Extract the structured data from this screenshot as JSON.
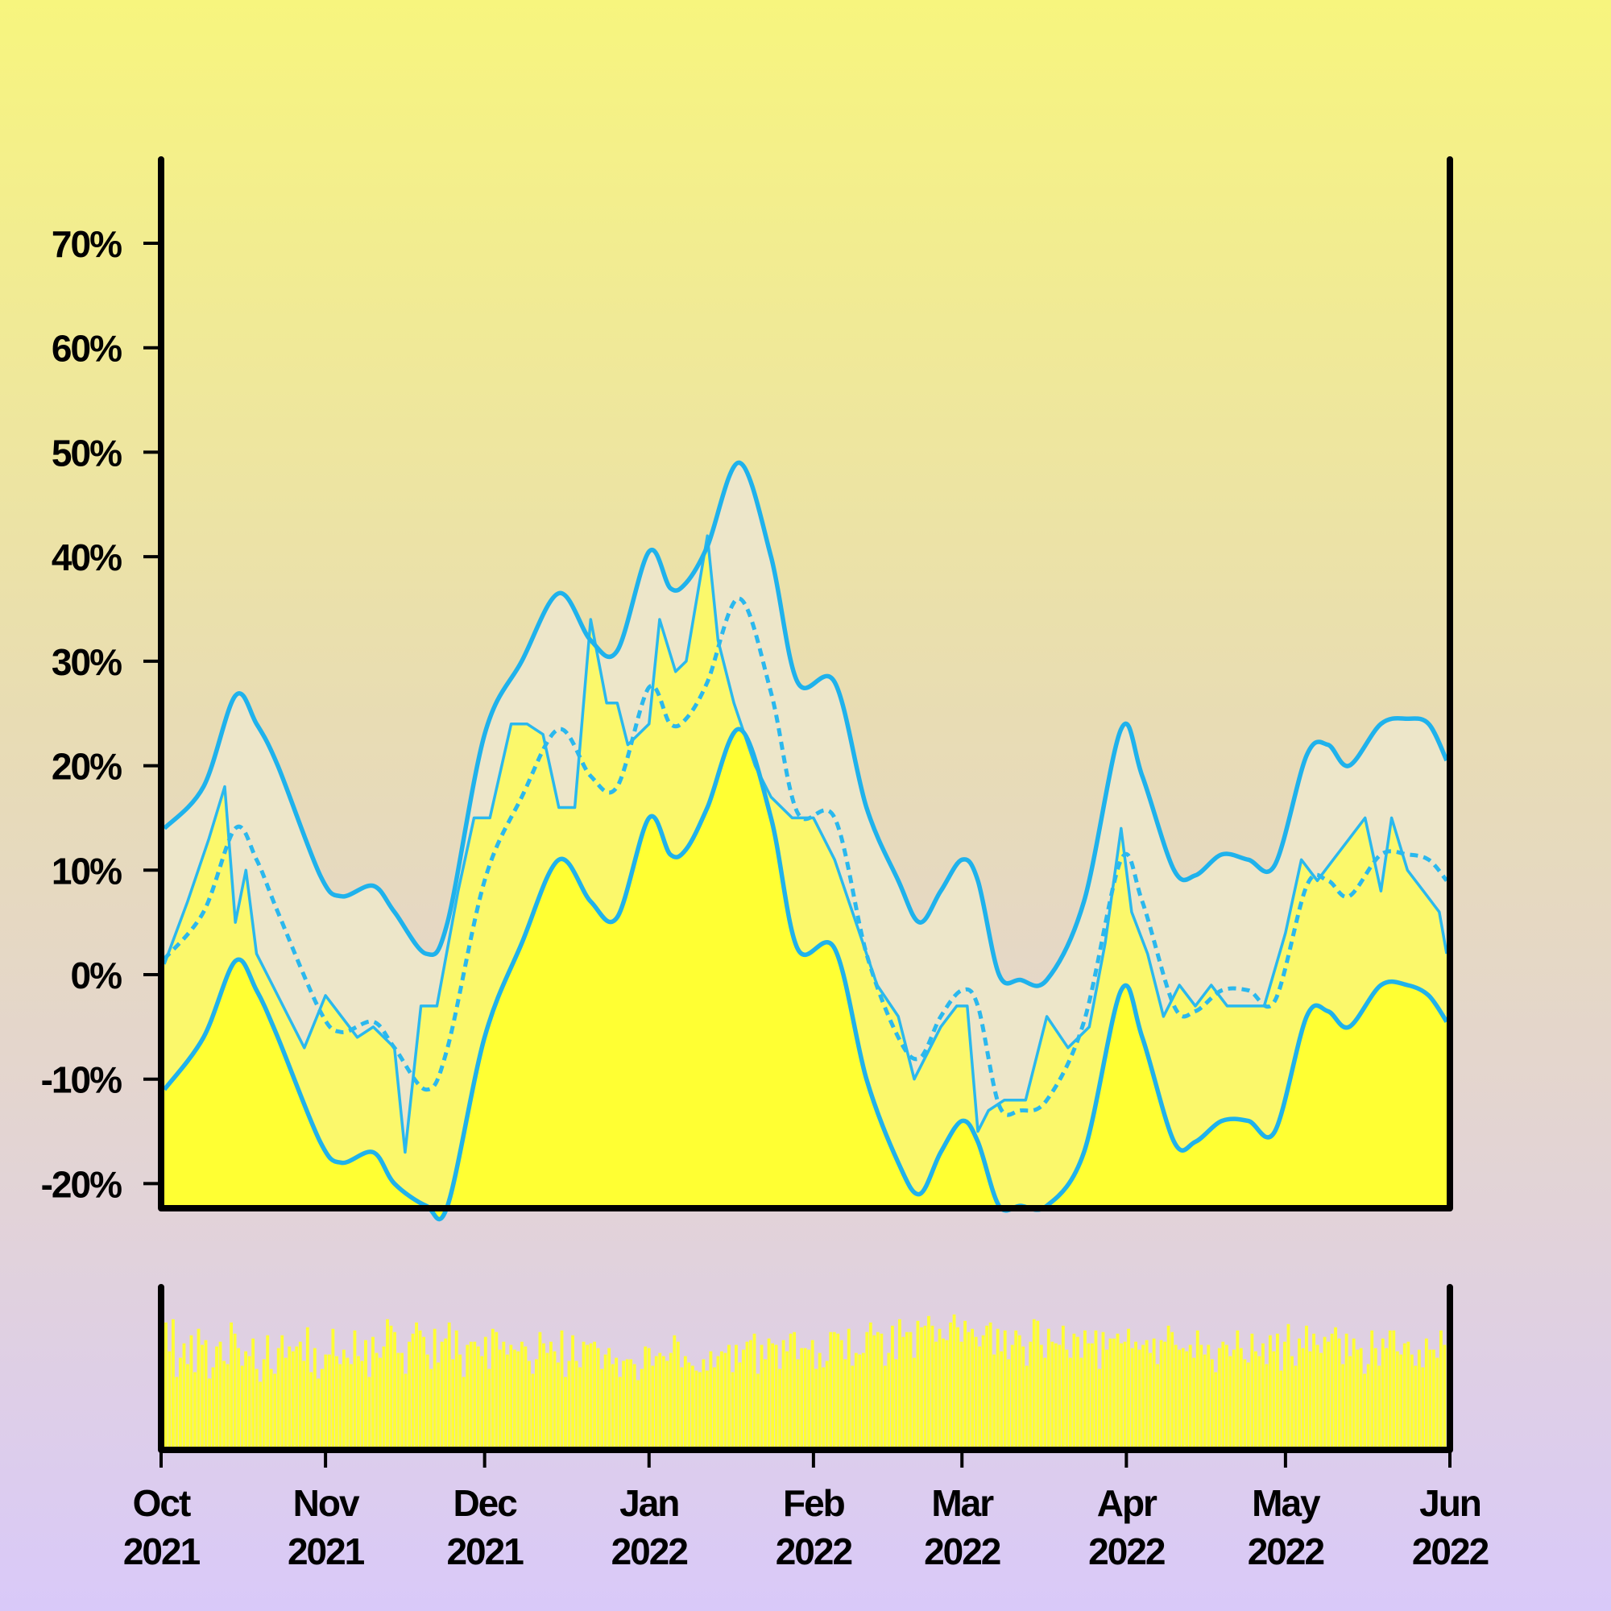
{
  "chart_data": {
    "type": "line",
    "x_start": "2021-10-01",
    "x_end": "2022-06-01",
    "y_ticks": [
      -20,
      -10,
      0,
      10,
      20,
      30,
      40,
      50,
      60,
      70
    ],
    "y_tick_labels": [
      "-20%",
      "-10%",
      "0%",
      "10%",
      "20%",
      "30%",
      "40%",
      "50%",
      "60%",
      "70%"
    ],
    "ylim": [
      -21.8,
      77
    ],
    "x_ticks": [
      {
        "date": "2021-10-01",
        "month": "Oct",
        "year": "2021"
      },
      {
        "date": "2021-11-01",
        "month": "Nov",
        "year": "2021"
      },
      {
        "date": "2021-12-01",
        "month": "Dec",
        "year": "2021"
      },
      {
        "date": "2022-01-01",
        "month": "Jan",
        "year": "2022"
      },
      {
        "date": "2022-02-01",
        "month": "Feb",
        "year": "2022"
      },
      {
        "date": "2022-03-01",
        "month": "Mar",
        "year": "2022"
      },
      {
        "date": "2022-04-01",
        "month": "Apr",
        "year": "2022"
      },
      {
        "date": "2022-05-01",
        "month": "May",
        "year": "2022"
      },
      {
        "date": "2022-06-01",
        "month": "Jun",
        "year": "2022"
      }
    ],
    "series": [
      {
        "role": "upper",
        "x": [
          "2021-10-01",
          "2021-10-09",
          "2021-10-15",
          "2021-10-19",
          "2021-10-23",
          "2021-10-31",
          "2021-11-04",
          "2021-11-10",
          "2021-11-14",
          "2021-11-20",
          "2021-11-24",
          "2021-12-01",
          "2021-12-08",
          "2021-12-15",
          "2021-12-21",
          "2021-12-26",
          "2022-01-01",
          "2022-01-05",
          "2022-01-08",
          "2022-01-12",
          "2022-01-18",
          "2022-01-24",
          "2022-01-29",
          "2022-02-05",
          "2022-02-11",
          "2022-02-17",
          "2022-02-21",
          "2022-02-25",
          "2022-03-01",
          "2022-03-04",
          "2022-03-08",
          "2022-03-12",
          "2022-03-17",
          "2022-03-24",
          "2022-03-31",
          "2022-04-04",
          "2022-04-10",
          "2022-04-14",
          "2022-04-19",
          "2022-04-24",
          "2022-04-29",
          "2022-05-05",
          "2022-05-09",
          "2022-05-13",
          "2022-05-19",
          "2022-05-24",
          "2022-05-28",
          "2022-06-01"
        ],
        "y": [
          14,
          18,
          26.7,
          24,
          20,
          9.5,
          7.5,
          8.5,
          6,
          2,
          5,
          23,
          30,
          36.5,
          32,
          31,
          40.5,
          37,
          37.5,
          41,
          49,
          40,
          28,
          28,
          16,
          9,
          5,
          8,
          11,
          9,
          0,
          -0.5,
          -0.5,
          7,
          23.5,
          19,
          10,
          9.5,
          11.5,
          11,
          10.5,
          21,
          22,
          20,
          24,
          24.5,
          24,
          20.5
        ]
      },
      {
        "role": "lower",
        "x": [
          "2021-10-01",
          "2021-10-09",
          "2021-10-15",
          "2021-10-19",
          "2021-10-23",
          "2021-10-31",
          "2021-11-04",
          "2021-11-10",
          "2021-11-14",
          "2021-11-20",
          "2021-11-24",
          "2021-12-01",
          "2021-12-08",
          "2021-12-15",
          "2021-12-21",
          "2021-12-26",
          "2022-01-01",
          "2022-01-05",
          "2022-01-08",
          "2022-01-12",
          "2022-01-18",
          "2022-01-24",
          "2022-01-29",
          "2022-02-05",
          "2022-02-11",
          "2022-02-17",
          "2022-02-21",
          "2022-02-25",
          "2022-03-01",
          "2022-03-04",
          "2022-03-08",
          "2022-03-12",
          "2022-03-17",
          "2022-03-24",
          "2022-03-31",
          "2022-04-04",
          "2022-04-10",
          "2022-04-14",
          "2022-04-19",
          "2022-04-24",
          "2022-04-29",
          "2022-05-05",
          "2022-05-09",
          "2022-05-13",
          "2022-05-19",
          "2022-05-24",
          "2022-05-28",
          "2022-06-01"
        ],
        "y": [
          -11,
          -6,
          1.3,
          -1.5,
          -6,
          -16,
          -18,
          -17,
          -20,
          -24,
          -23,
          -6,
          3,
          11,
          7,
          5.5,
          15,
          11.5,
          12,
          16,
          23.5,
          15,
          2.5,
          2.5,
          -10,
          -18,
          -21,
          -17,
          -14,
          -16,
          -25,
          -25,
          -24,
          -17,
          -1.5,
          -6,
          -16,
          -16,
          -14,
          -14,
          -15,
          -4,
          -3.5,
          -5,
          -1,
          -1,
          -2,
          -4.5
        ]
      },
      {
        "role": "mean",
        "x": [
          "2021-10-01",
          "2021-10-09",
          "2021-10-15",
          "2021-10-19",
          "2021-10-23",
          "2021-10-31",
          "2021-11-04",
          "2021-11-10",
          "2021-11-14",
          "2021-11-20",
          "2021-11-24",
          "2021-12-01",
          "2021-12-08",
          "2021-12-15",
          "2021-12-21",
          "2021-12-26",
          "2022-01-01",
          "2022-01-05",
          "2022-01-08",
          "2022-01-12",
          "2022-01-18",
          "2022-01-24",
          "2022-01-29",
          "2022-02-05",
          "2022-02-11",
          "2022-02-17",
          "2022-02-21",
          "2022-02-25",
          "2022-03-01",
          "2022-03-04",
          "2022-03-08",
          "2022-03-12",
          "2022-03-17",
          "2022-03-24",
          "2022-03-31",
          "2022-04-04",
          "2022-04-10",
          "2022-04-14",
          "2022-04-19",
          "2022-04-24",
          "2022-04-29",
          "2022-05-05",
          "2022-05-09",
          "2022-05-13",
          "2022-05-19",
          "2022-05-24",
          "2022-05-28",
          "2022-06-01"
        ],
        "y": [
          1.5,
          6,
          14,
          11,
          6,
          -3.5,
          -5.5,
          -4.5,
          -7,
          -11,
          -7,
          9,
          17,
          23.5,
          19,
          18,
          27.5,
          24,
          24.5,
          28,
          36,
          27,
          15.5,
          15,
          2,
          -6,
          -8,
          -4,
          -1.5,
          -3,
          -12.5,
          -13,
          -12,
          -4.5,
          11,
          7,
          -3,
          -3.5,
          -1.5,
          -1.5,
          -2.5,
          8.5,
          9,
          7.5,
          11.5,
          11.5,
          11,
          9
        ]
      },
      {
        "role": "daily",
        "x": [
          "2021-10-01",
          "2021-10-06",
          "2021-10-10",
          "2021-10-13",
          "2021-10-15",
          "2021-10-17",
          "2021-10-19",
          "2021-10-22",
          "2021-10-25",
          "2021-10-28",
          "2021-11-01",
          "2021-11-04",
          "2021-11-07",
          "2021-11-10",
          "2021-11-14",
          "2021-11-16",
          "2021-11-19",
          "2021-11-22",
          "2021-11-26",
          "2021-11-29",
          "2021-12-02",
          "2021-12-06",
          "2021-12-09",
          "2021-12-12",
          "2021-12-15",
          "2021-12-18",
          "2021-12-21",
          "2021-12-24",
          "2021-12-26",
          "2021-12-28",
          "2022-01-01",
          "2022-01-03",
          "2022-01-06",
          "2022-01-08",
          "2022-01-12",
          "2022-01-14",
          "2022-01-17",
          "2022-01-21",
          "2022-01-24",
          "2022-01-28",
          "2022-02-01",
          "2022-02-05",
          "2022-02-09",
          "2022-02-13",
          "2022-02-17",
          "2022-02-20",
          "2022-02-22",
          "2022-02-25",
          "2022-02-28",
          "2022-03-02",
          "2022-03-04",
          "2022-03-06",
          "2022-03-09",
          "2022-03-13",
          "2022-03-17",
          "2022-03-21",
          "2022-03-25",
          "2022-03-28",
          "2022-03-31",
          "2022-04-02",
          "2022-04-05",
          "2022-04-08",
          "2022-04-11",
          "2022-04-14",
          "2022-04-17",
          "2022-04-20",
          "2022-04-24",
          "2022-04-27",
          "2022-05-01",
          "2022-05-04",
          "2022-05-07",
          "2022-05-10",
          "2022-05-13",
          "2022-05-16",
          "2022-05-19",
          "2022-05-21",
          "2022-05-24",
          "2022-05-27",
          "2022-05-30",
          "2022-06-01"
        ],
        "y": [
          1,
          7,
          13,
          18,
          5,
          10,
          2,
          -1,
          -4,
          -7,
          -2,
          -4,
          -6,
          -5,
          -7,
          -17,
          -3,
          -3,
          8,
          15,
          15,
          24,
          24,
          23,
          16,
          16,
          34,
          26,
          26,
          22,
          24,
          34,
          29,
          30,
          42,
          32,
          26,
          20,
          17,
          15,
          15,
          11,
          5,
          -1,
          -4,
          -10,
          -8,
          -5,
          -3,
          -3,
          -15,
          -13,
          -12,
          -12,
          -4,
          -7,
          -5,
          3,
          14,
          6,
          2,
          -4,
          -1,
          -3,
          -1,
          -3,
          -3,
          -3,
          4,
          11,
          9,
          11,
          13,
          15,
          8,
          15,
          10,
          8,
          6,
          2
        ]
      }
    ],
    "volume": {
      "x_start": "2021-10-01",
      "x_end": "2022-06-01",
      "ymax": 100,
      "values": [
        78,
        60,
        80,
        44,
        56,
        65,
        52,
        70,
        47,
        74,
        64,
        67,
        43,
        50,
        63,
        66,
        54,
        52,
        78,
        71,
        62,
        51,
        60,
        57,
        68,
        49,
        41,
        55,
        70,
        49,
        46,
        62,
        70,
        56,
        63,
        60,
        63,
        66,
        54,
        75,
        47,
        62,
        43,
        49,
        58,
        58,
        74,
        57,
        52,
        61,
        56,
        52,
        73,
        57,
        54,
        67,
        44,
        69,
        59,
        56,
        63,
        80,
        76,
        72,
        59,
        59,
        46,
        66,
        71,
        78,
        73,
        69,
        58,
        49,
        74,
        53,
        66,
        68,
        78,
        55,
        73,
        58,
        44,
        64,
        66,
        66,
        63,
        57,
        69,
        49,
        74,
        72,
        61,
        66,
        58,
        64,
        61,
        60,
        66,
        63,
        54,
        46,
        55,
        72,
        65,
        59,
        66,
        60,
        53,
        73,
        44,
        54,
        70,
        54,
        50,
        66,
        64,
        65,
        66,
        62,
        49,
        58,
        62,
        52,
        56,
        44,
        54,
        55,
        55,
        52,
        42,
        49,
        63,
        62,
        51,
        57,
        59,
        57,
        54,
        59,
        70,
        66,
        50,
        57,
        53,
        51,
        48,
        47,
        55,
        48,
        60,
        50,
        57,
        60,
        59,
        64,
        47,
        64,
        53,
        61,
        66,
        67,
        71,
        46,
        64,
        55,
        68,
        65,
        64,
        49,
        67,
        60,
        71,
        72,
        55,
        62,
        62,
        61,
        67,
        49,
        59,
        50,
        54,
        72,
        72,
        71,
        67,
        55,
        74,
        51,
        59,
        58,
        59,
        72,
        78,
        70,
        72,
        71,
        51,
        59,
        76,
        55,
        80,
        69,
        72,
        72,
        56,
        79,
        75,
        76,
        82,
        76,
        66,
        74,
        68,
        67,
        78,
        83,
        75,
        66,
        79,
        72,
        74,
        69,
        63,
        70,
        76,
        78,
        58,
        74,
        60,
        73,
        55,
        64,
        73,
        70,
        63,
        51,
        66,
        80,
        79,
        64,
        56,
        74,
        66,
        65,
        64,
        76,
        61,
        56,
        71,
        69,
        56,
        73,
        65,
        65,
        73,
        49,
        72,
        61,
        68,
        68,
        71,
        65,
        66,
        74,
        62,
        66,
        61,
        64,
        67,
        59,
        68,
        52,
        67,
        66,
        76,
        72,
        64,
        61,
        62,
        60,
        64,
        56,
        73,
        64,
        58,
        64,
        55,
        47,
        62,
        66,
        64,
        57,
        61,
        73,
        62,
        55,
        53,
        71,
        60,
        57,
        65,
        52,
        70,
        60,
        71,
        48,
        66,
        77,
        57,
        51,
        68,
        62,
        76,
        60,
        71,
        64,
        59,
        69,
        66,
        71,
        75,
        68,
        52,
        71,
        57,
        68,
        61,
        62,
        46,
        52,
        73,
        62,
        51,
        68,
        62,
        73,
        73,
        60,
        58,
        65,
        66,
        58,
        51,
        61,
        50,
        68,
        61,
        61,
        56,
        73,
        64
      ]
    }
  }
}
